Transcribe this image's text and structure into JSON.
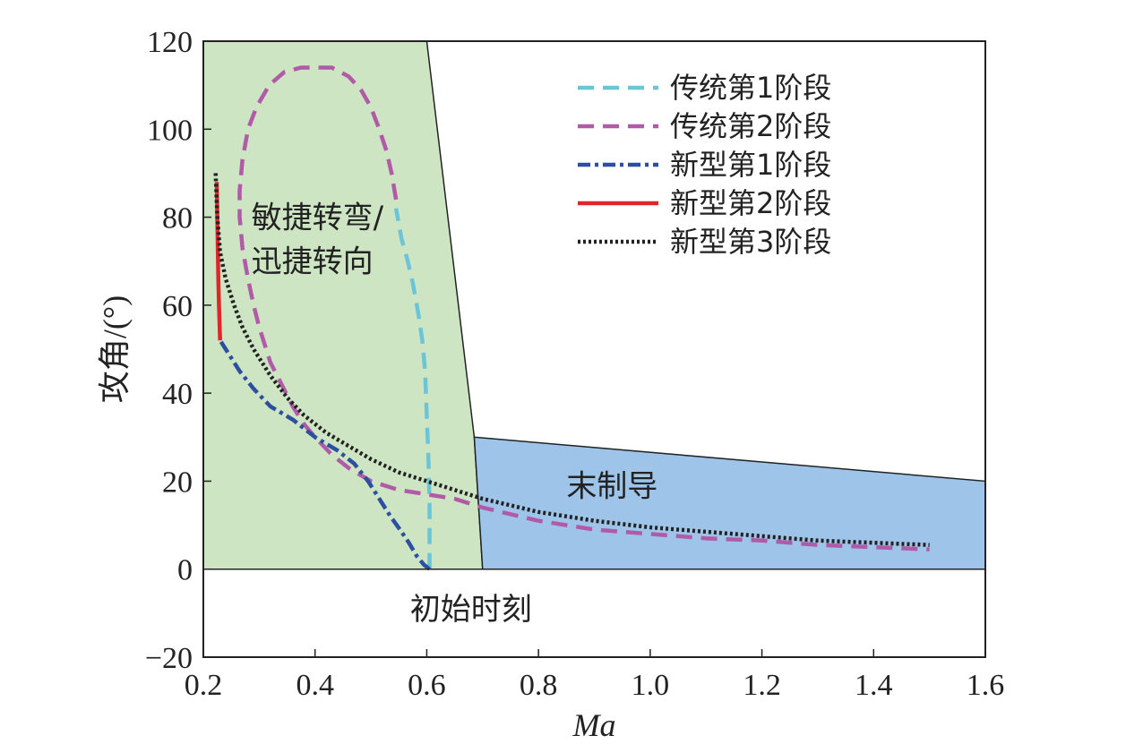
{
  "chart_data": {
    "type": "line",
    "xlabel": "Ma",
    "ylabel": "攻角/(°)",
    "xlim": [
      0.2,
      1.6
    ],
    "ylim": [
      -20,
      120
    ],
    "xticks": [
      "0.2",
      "0.4",
      "0.6",
      "0.8",
      "1.0",
      "1.2",
      "1.4",
      "1.6"
    ],
    "yticks": [
      "−20",
      "0",
      "20",
      "40",
      "60",
      "80",
      "100",
      "120"
    ],
    "grid": false,
    "legend_position": "top-right",
    "regions": [
      {
        "name": "green-region",
        "color": "#cde5c3",
        "polygon": [
          [
            0.2,
            0
          ],
          [
            0.2,
            120
          ],
          [
            0.6,
            120
          ],
          [
            0.685,
            30
          ],
          [
            0.7,
            0
          ]
        ]
      },
      {
        "name": "blue-region",
        "color": "#9ec5e9",
        "polygon": [
          [
            0.685,
            30
          ],
          [
            1.6,
            20
          ],
          [
            1.6,
            0
          ],
          [
            0.7,
            0
          ]
        ]
      }
    ],
    "annotations": [
      {
        "name": "annot-agile-1",
        "text": "敏捷转弯/",
        "x": 0.286,
        "y": 80
      },
      {
        "name": "annot-agile-2",
        "text": "迅捷转向",
        "x": 0.286,
        "y": 70
      },
      {
        "name": "annot-terminal",
        "text": "末制导",
        "x": 0.85,
        "y": 19
      },
      {
        "name": "annot-initial",
        "text": "初始时刻",
        "x": 0.57,
        "y": -9
      }
    ],
    "series": [
      {
        "name": "传统第1阶段",
        "color": "#6cc5d6",
        "style": "dashed",
        "x": [
          0.605,
          0.605,
          0.605,
          0.603,
          0.6,
          0.597,
          0.592,
          0.585,
          0.575,
          0.566,
          0.555,
          0.545
        ],
        "y": [
          0,
          8,
          15,
          25,
          35,
          45,
          52,
          58,
          65,
          70,
          75,
          82
        ]
      },
      {
        "name": "传统第2阶段",
        "color": "#b05aa8",
        "style": "dashed",
        "x": [
          0.545,
          0.537,
          0.528,
          0.515,
          0.5,
          0.482,
          0.46,
          0.43,
          0.4,
          0.375,
          0.345,
          0.318,
          0.295,
          0.28,
          0.27,
          0.265,
          0.265,
          0.27,
          0.28,
          0.29,
          0.3,
          0.31,
          0.32,
          0.34,
          0.36,
          0.38,
          0.4,
          0.43,
          0.46,
          0.5,
          0.55,
          0.6,
          0.65,
          0.7,
          0.8,
          0.9,
          1.0,
          1.1,
          1.2,
          1.3,
          1.4,
          1.5
        ],
        "y": [
          84,
          90,
          95,
          100,
          105,
          109,
          112,
          114,
          114,
          114,
          113,
          110,
          105,
          100,
          93,
          86,
          80,
          73,
          66,
          60,
          55,
          51,
          47,
          42,
          37,
          33,
          30,
          26,
          23,
          20,
          18,
          17,
          16,
          14,
          11,
          9,
          8,
          7,
          6.5,
          5.5,
          5,
          4.5
        ]
      },
      {
        "name": "新型第1阶段",
        "color": "#2c4fa0",
        "style": "dashdot",
        "x": [
          0.605,
          0.595,
          0.582,
          0.568,
          0.552,
          0.535,
          0.515,
          0.495,
          0.47,
          0.44,
          0.4,
          0.36,
          0.32,
          0.29,
          0.265,
          0.245,
          0.23
        ],
        "y": [
          0,
          1,
          3,
          6,
          9,
          12,
          16,
          20,
          24,
          27,
          30,
          34,
          37,
          41,
          45,
          49,
          52
        ]
      },
      {
        "name": "新型第2阶段",
        "color": "#e0262a",
        "style": "solid",
        "x": [
          0.23,
          0.229,
          0.228,
          0.227,
          0.226,
          0.225,
          0.224
        ],
        "y": [
          52,
          56,
          60,
          65,
          72,
          80,
          88
        ]
      },
      {
        "name": "新型第3阶段",
        "color": "#222222",
        "style": "dotted",
        "x": [
          0.222,
          0.225,
          0.23,
          0.24,
          0.255,
          0.27,
          0.29,
          0.32,
          0.35,
          0.38,
          0.42,
          0.46,
          0.5,
          0.55,
          0.6,
          0.65,
          0.7,
          0.8,
          0.9,
          1.0,
          1.1,
          1.2,
          1.3,
          1.4,
          1.5
        ],
        "y": [
          90,
          80,
          72,
          66,
          60,
          55,
          50,
          44,
          39,
          35,
          31,
          28,
          25,
          22,
          20,
          18,
          16,
          13,
          11,
          9.5,
          8.5,
          7.5,
          6.5,
          6,
          5.5
        ]
      }
    ]
  }
}
